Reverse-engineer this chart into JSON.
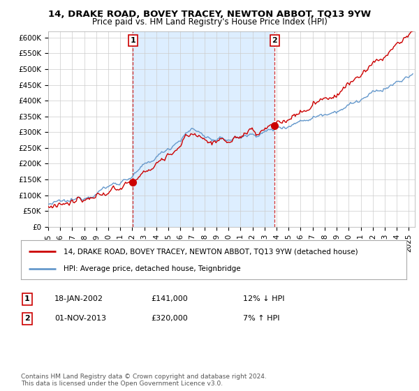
{
  "title": "14, DRAKE ROAD, BOVEY TRACEY, NEWTON ABBOT, TQ13 9YW",
  "subtitle": "Price paid vs. HM Land Registry's House Price Index (HPI)",
  "xlim_start": 1995.0,
  "xlim_end": 2025.5,
  "ylim": [
    0,
    620000
  ],
  "yticks": [
    0,
    50000,
    100000,
    150000,
    200000,
    250000,
    300000,
    350000,
    400000,
    450000,
    500000,
    550000,
    600000
  ],
  "ytick_labels": [
    "£0",
    "£50K",
    "£100K",
    "£150K",
    "£200K",
    "£250K",
    "£300K",
    "£350K",
    "£400K",
    "£450K",
    "£500K",
    "£550K",
    "£600K"
  ],
  "sale1_date": 2002.05,
  "sale1_price": 141000,
  "sale2_date": 2013.84,
  "sale2_price": 320000,
  "legend_line1": "14, DRAKE ROAD, BOVEY TRACEY, NEWTON ABBOT, TQ13 9YW (detached house)",
  "legend_line2": "HPI: Average price, detached house, Teignbridge",
  "annotation1_date": "18-JAN-2002",
  "annotation1_price": "£141,000",
  "annotation1_hpi": "12% ↓ HPI",
  "annotation2_date": "01-NOV-2013",
  "annotation2_price": "£320,000",
  "annotation2_hpi": "7% ↑ HPI",
  "footer": "Contains HM Land Registry data © Crown copyright and database right 2024.\nThis data is licensed under the Open Government Licence v3.0.",
  "red_color": "#cc0000",
  "blue_color": "#6699cc",
  "highlight_color": "#ddeeff"
}
